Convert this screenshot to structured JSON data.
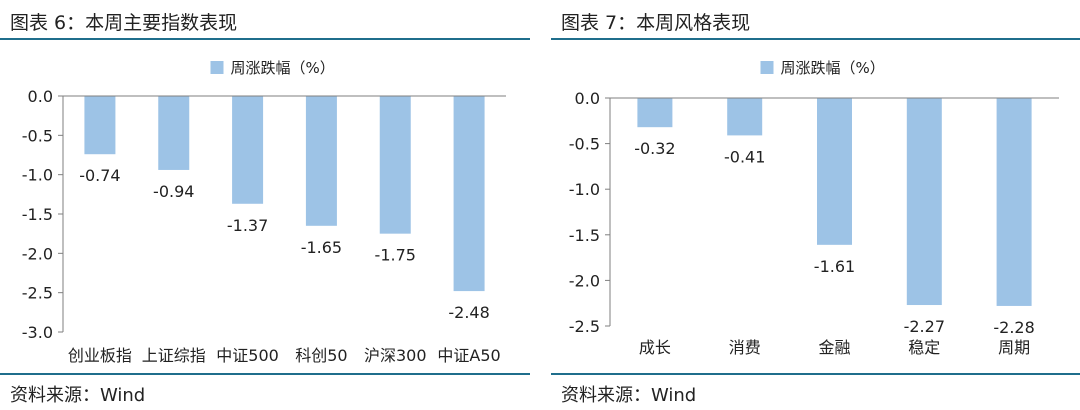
{
  "charts": [
    {
      "title": "图表 6：本周主要指数表现",
      "source": "资料来源：Wind",
      "legend_label": "周涨跌幅（%）",
      "chart_data": {
        "type": "bar",
        "categories": [
          "创业板指",
          "上证综指",
          "中证500",
          "科创50",
          "沪深300",
          "中证A50"
        ],
        "series": [
          {
            "name": "周涨跌幅（%）",
            "values": [
              -0.74,
              -0.94,
              -1.37,
              -1.65,
              -1.75,
              -2.48
            ]
          }
        ],
        "ylim": [
          -3.0,
          0.0
        ],
        "yticks": [
          "0.0",
          "-0.5",
          "-1.0",
          "-1.5",
          "-2.0",
          "-2.5",
          "-3.0"
        ],
        "data_labels": [
          "-0.74",
          "-0.94",
          "-1.37",
          "-1.65",
          "-1.75",
          "-2.48"
        ],
        "legend_position": "top-center",
        "grid": false
      }
    },
    {
      "title": "图表 7：本周风格表现",
      "source": "资料来源：Wind",
      "legend_label": "周涨跌幅（%）",
      "chart_data": {
        "type": "bar",
        "categories": [
          "成长",
          "消费",
          "金融",
          "稳定",
          "周期"
        ],
        "series": [
          {
            "name": "周涨跌幅（%）",
            "values": [
              -0.32,
              -0.41,
              -1.61,
              -2.27,
              -2.28
            ]
          }
        ],
        "ylim": [
          -2.5,
          0.0
        ],
        "yticks": [
          "0.0",
          "-0.5",
          "-1.0",
          "-1.5",
          "-2.0",
          "-2.5"
        ],
        "data_labels": [
          "-0.32",
          "-0.41",
          "-1.61",
          "-2.27",
          "-2.28"
        ],
        "legend_position": "top-center",
        "grid": false
      }
    }
  ],
  "colors": {
    "bar": "#9dc3e6",
    "rule": "#1f6e8c",
    "axis": "#7f7f7f",
    "text": "#222222"
  }
}
